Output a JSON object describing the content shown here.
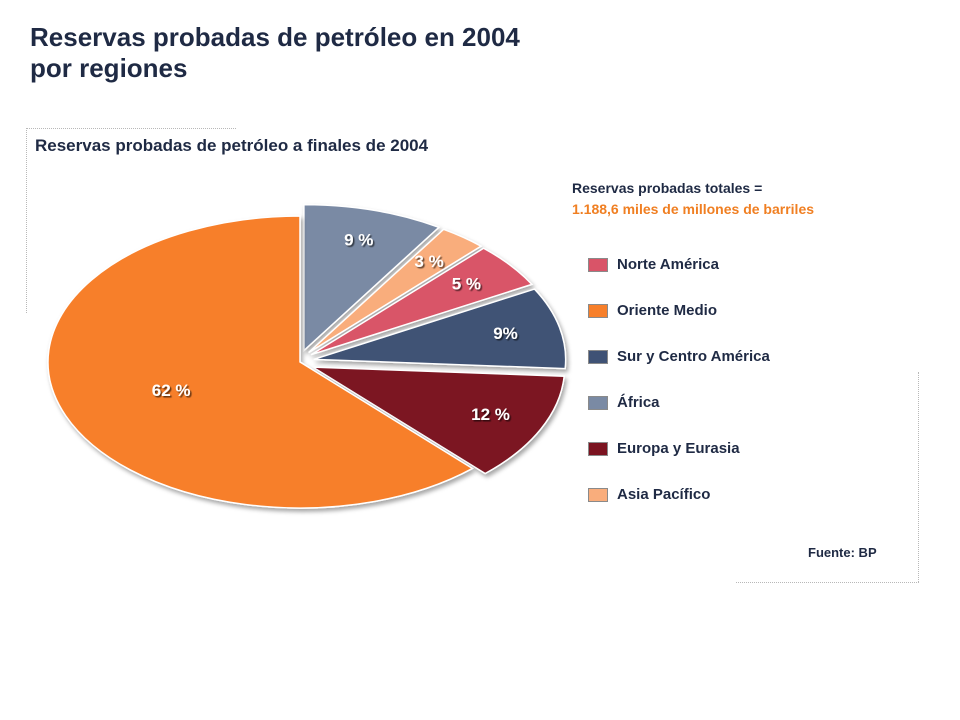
{
  "title_line1": "Reservas probadas de petróleo en 2004",
  "title_line2": "por regiones",
  "totals": {
    "line1": "Reservas probadas totales =",
    "line2": "1.188,6 miles de millones de barriles",
    "accent_color": "#f07f22"
  },
  "source": "Fuente: BP",
  "chart_data": {
    "type": "pie",
    "title": "Reservas probadas de petróleo a finales de 2004",
    "slices": [
      {
        "name": "Norte América",
        "value": 5,
        "label": "5 %",
        "color": "#d95468",
        "exploded": true
      },
      {
        "name": "Oriente Medio",
        "value": 62,
        "label": "62 %",
        "color": "#f77f2a",
        "exploded": false
      },
      {
        "name": "Sur y Centro América",
        "value": 9,
        "label": "9%",
        "color": "#3f5275",
        "exploded": true
      },
      {
        "name": "África",
        "value": 9,
        "label": "9 %",
        "color": "#7a8aa4",
        "exploded": true
      },
      {
        "name": "Europa y Eurasia",
        "value": 12,
        "label": "12 %",
        "color": "#7b1320",
        "exploded": true
      },
      {
        "name": "Asia Pacífico",
        "value": 3,
        "label": "3 %",
        "color": "#f9ad7c",
        "exploded": true
      }
    ],
    "legend": [
      {
        "name": "Norte América",
        "color": "#d95468"
      },
      {
        "name": "Oriente Medio",
        "color": "#f77f2a"
      },
      {
        "name": "Sur y Centro América",
        "color": "#3f5275"
      },
      {
        "name": "África",
        "color": "#7a8aa4"
      },
      {
        "name": "Europa y Eurasia",
        "color": "#7b1320"
      },
      {
        "name": "Asia Pacífico",
        "color": "#f9ad7c"
      }
    ],
    "legend_position": "right"
  }
}
